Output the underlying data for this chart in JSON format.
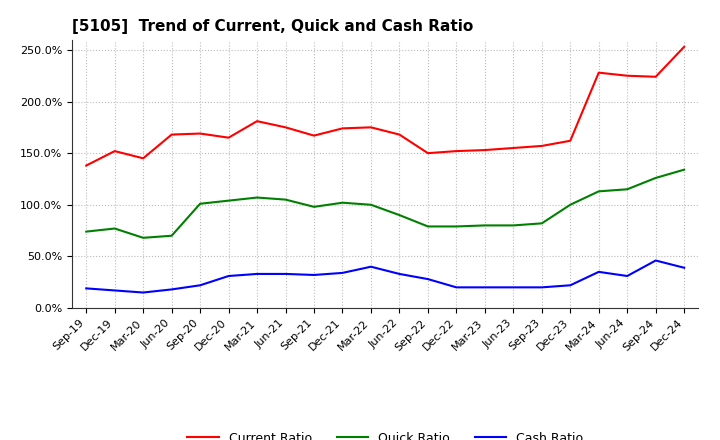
{
  "title": "[5105]  Trend of Current, Quick and Cash Ratio",
  "labels": [
    "Sep-19",
    "Dec-19",
    "Mar-20",
    "Jun-20",
    "Sep-20",
    "Dec-20",
    "Mar-21",
    "Jun-21",
    "Sep-21",
    "Dec-21",
    "Mar-22",
    "Jun-22",
    "Sep-22",
    "Dec-22",
    "Mar-23",
    "Jun-23",
    "Sep-23",
    "Dec-23",
    "Mar-24",
    "Jun-24",
    "Sep-24",
    "Dec-24"
  ],
  "current_ratio": [
    138,
    152,
    145,
    168,
    169,
    165,
    181,
    175,
    167,
    174,
    175,
    168,
    150,
    152,
    153,
    155,
    157,
    162,
    228,
    225,
    224,
    253
  ],
  "quick_ratio": [
    74,
    77,
    68,
    70,
    101,
    104,
    107,
    105,
    98,
    102,
    100,
    90,
    79,
    79,
    80,
    80,
    82,
    100,
    113,
    115,
    126,
    134
  ],
  "cash_ratio": [
    19,
    17,
    15,
    18,
    22,
    31,
    33,
    33,
    32,
    34,
    40,
    33,
    28,
    20,
    20,
    20,
    20,
    22,
    35,
    31,
    46,
    39
  ],
  "current_color": "#FF0000",
  "quick_color": "#008000",
  "cash_color": "#0000FF",
  "ylim": [
    0,
    260
  ],
  "yticks": [
    0,
    50,
    100,
    150,
    200,
    250
  ],
  "background_color": "#FFFFFF",
  "grid_color": "#BBBBBB",
  "line_width": 1.5,
  "title_fontsize": 11,
  "tick_fontsize": 8,
  "legend_fontsize": 9
}
